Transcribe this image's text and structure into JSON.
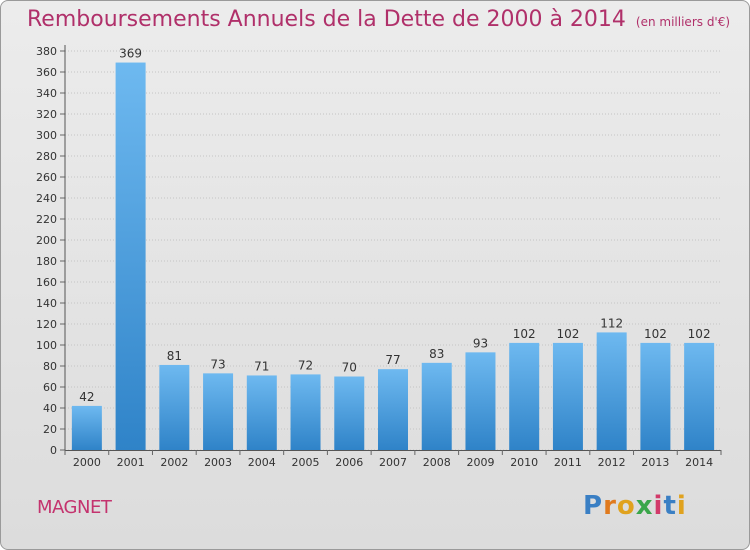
{
  "title": "Remboursements Annuels de la Dette de 2000 à 2014",
  "subtitle": "(en milliers d'€)",
  "city": "MAGNET",
  "brand": {
    "letters": [
      "P",
      "r",
      "o",
      "x",
      "i",
      "t",
      "i"
    ],
    "colors": [
      "#3a7fc4",
      "#e07a1e",
      "#e0a21e",
      "#3aa64a",
      "#d23a6a",
      "#3a7fc4",
      "#e0a21e"
    ]
  },
  "colors": {
    "bar_light": "#6eb9f0",
    "bar_dark": "#2f83c8",
    "title": "#b0306a",
    "grid": "#c4c4c4"
  },
  "chart_data": {
    "type": "bar",
    "categories": [
      "2000",
      "2001",
      "2002",
      "2003",
      "2004",
      "2005",
      "2006",
      "2007",
      "2008",
      "2009",
      "2010",
      "2011",
      "2012",
      "2013",
      "2014"
    ],
    "values": [
      42,
      369,
      81,
      73,
      71,
      72,
      70,
      77,
      83,
      93,
      102,
      102,
      112,
      102,
      102
    ],
    "ylim": [
      0,
      380
    ],
    "ytick_step": 20,
    "grid": true,
    "title": "Remboursements Annuels de la Dette de 2000 à 2014",
    "xlabel": "",
    "ylabel": ""
  }
}
